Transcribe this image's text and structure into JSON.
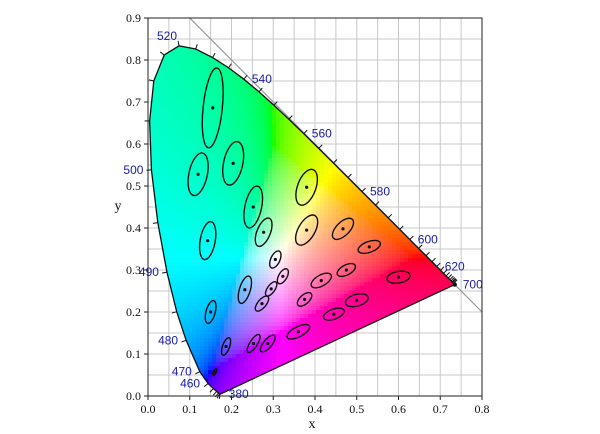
{
  "chart_data": {
    "type": "scatter",
    "title": "",
    "xlabel": "x",
    "ylabel": "y",
    "xlim": [
      0,
      0.8
    ],
    "ylim": [
      0,
      0.9
    ],
    "grid": true,
    "x_ticks": [
      "0.0",
      "0.1",
      "0.2",
      "0.3",
      "0.4",
      "0.5",
      "0.6",
      "0.7",
      "0.8"
    ],
    "y_ticks": [
      "0.0",
      "0.1",
      "0.2",
      "0.3",
      "0.4",
      "0.5",
      "0.6",
      "0.7",
      "0.8",
      "0.9"
    ],
    "spectral_locus": [
      [
        0.1741,
        0.005
      ],
      [
        0.1738,
        0.0049
      ],
      [
        0.1736,
        0.0049
      ],
      [
        0.1733,
        0.0048
      ],
      [
        0.1726,
        0.0048
      ],
      [
        0.1714,
        0.0051
      ],
      [
        0.1689,
        0.0069
      ],
      [
        0.1644,
        0.0109
      ],
      [
        0.1566,
        0.0177
      ],
      [
        0.144,
        0.0297
      ],
      [
        0.1241,
        0.0578
      ],
      [
        0.0913,
        0.1327
      ],
      [
        0.0687,
        0.2007
      ],
      [
        0.0454,
        0.295
      ],
      [
        0.0235,
        0.4127
      ],
      [
        0.0082,
        0.5384
      ],
      [
        0.0039,
        0.6548
      ],
      [
        0.0139,
        0.7502
      ],
      [
        0.0389,
        0.812
      ],
      [
        0.0743,
        0.8338
      ],
      [
        0.1142,
        0.8262
      ],
      [
        0.1547,
        0.8059
      ],
      [
        0.1929,
        0.7816
      ],
      [
        0.2296,
        0.7543
      ],
      [
        0.2658,
        0.7243
      ],
      [
        0.3016,
        0.6923
      ],
      [
        0.3373,
        0.6589
      ],
      [
        0.3731,
        0.6245
      ],
      [
        0.4087,
        0.5896
      ],
      [
        0.4441,
        0.5547
      ],
      [
        0.4788,
        0.5202
      ],
      [
        0.5125,
        0.4866
      ],
      [
        0.5448,
        0.4544
      ],
      [
        0.5752,
        0.4242
      ],
      [
        0.6029,
        0.3965
      ],
      [
        0.627,
        0.3725
      ],
      [
        0.6482,
        0.3514
      ],
      [
        0.6658,
        0.334
      ],
      [
        0.6801,
        0.3197
      ],
      [
        0.6915,
        0.3083
      ],
      [
        0.7006,
        0.2993
      ],
      [
        0.7079,
        0.292
      ],
      [
        0.714,
        0.2859
      ],
      [
        0.719,
        0.2809
      ],
      [
        0.723,
        0.277
      ],
      [
        0.726,
        0.274
      ],
      [
        0.7283,
        0.2717
      ],
      [
        0.73,
        0.27
      ],
      [
        0.732,
        0.268
      ],
      [
        0.7347,
        0.2653
      ]
    ],
    "wavelength_labels": [
      {
        "text": "380",
        "x": 0.1741,
        "y": 0.005,
        "pos": "right"
      },
      {
        "text": "460",
        "x": 0.144,
        "y": 0.0297,
        "pos": "left"
      },
      {
        "text": "470",
        "x": 0.1241,
        "y": 0.0578,
        "pos": "left"
      },
      {
        "text": "480",
        "x": 0.0913,
        "y": 0.1327,
        "pos": "left"
      },
      {
        "text": "490",
        "x": 0.0454,
        "y": 0.295,
        "pos": "left"
      },
      {
        "text": "500",
        "x": 0.0082,
        "y": 0.5384,
        "pos": "left"
      },
      {
        "text": "520",
        "x": 0.0743,
        "y": 0.8338,
        "pos": "top"
      },
      {
        "text": "540",
        "x": 0.2296,
        "y": 0.7543,
        "pos": "right"
      },
      {
        "text": "560",
        "x": 0.3731,
        "y": 0.6245,
        "pos": "right"
      },
      {
        "text": "580",
        "x": 0.5125,
        "y": 0.4866,
        "pos": "right"
      },
      {
        "text": "600",
        "x": 0.627,
        "y": 0.3725,
        "pos": "right"
      },
      {
        "text": "620",
        "x": 0.6915,
        "y": 0.3083,
        "pos": "right"
      },
      {
        "text": "700",
        "x": 0.7347,
        "y": 0.2653,
        "pos": "right"
      }
    ],
    "ellipses": [
      {
        "x": 0.16,
        "y": 0.057,
        "a": 0.0085,
        "b": 0.0035,
        "angle": 62
      },
      {
        "x": 0.187,
        "y": 0.118,
        "a": 0.022,
        "b": 0.0085,
        "angle": 70
      },
      {
        "x": 0.253,
        "y": 0.125,
        "a": 0.025,
        "b": 0.009,
        "angle": 57
      },
      {
        "x": 0.15,
        "y": 0.2,
        "a": 0.028,
        "b": 0.011,
        "angle": 75
      },
      {
        "x": 0.287,
        "y": 0.125,
        "a": 0.025,
        "b": 0.01,
        "angle": 50
      },
      {
        "x": 0.36,
        "y": 0.153,
        "a": 0.03,
        "b": 0.012,
        "angle": 27
      },
      {
        "x": 0.445,
        "y": 0.195,
        "a": 0.026,
        "b": 0.012,
        "angle": 20
      },
      {
        "x": 0.5,
        "y": 0.228,
        "a": 0.028,
        "b": 0.014,
        "angle": 15
      },
      {
        "x": 0.6,
        "y": 0.283,
        "a": 0.028,
        "b": 0.014,
        "angle": 10
      },
      {
        "x": 0.232,
        "y": 0.253,
        "a": 0.034,
        "b": 0.013,
        "angle": 73
      },
      {
        "x": 0.273,
        "y": 0.22,
        "a": 0.022,
        "b": 0.01,
        "angle": 50
      },
      {
        "x": 0.295,
        "y": 0.255,
        "a": 0.02,
        "b": 0.009,
        "angle": 55
      },
      {
        "x": 0.323,
        "y": 0.285,
        "a": 0.02,
        "b": 0.01,
        "angle": 60
      },
      {
        "x": 0.375,
        "y": 0.23,
        "a": 0.021,
        "b": 0.011,
        "angle": 42
      },
      {
        "x": 0.415,
        "y": 0.275,
        "a": 0.027,
        "b": 0.013,
        "angle": 30
      },
      {
        "x": 0.475,
        "y": 0.3,
        "a": 0.024,
        "b": 0.012,
        "angle": 28
      },
      {
        "x": 0.53,
        "y": 0.355,
        "a": 0.028,
        "b": 0.013,
        "angle": 20
      },
      {
        "x": 0.305,
        "y": 0.325,
        "a": 0.022,
        "b": 0.011,
        "angle": 65
      },
      {
        "x": 0.143,
        "y": 0.37,
        "a": 0.046,
        "b": 0.018,
        "angle": 80
      },
      {
        "x": 0.277,
        "y": 0.39,
        "a": 0.036,
        "b": 0.016,
        "angle": 68
      },
      {
        "x": 0.38,
        "y": 0.395,
        "a": 0.04,
        "b": 0.02,
        "angle": 60
      },
      {
        "x": 0.467,
        "y": 0.398,
        "a": 0.032,
        "b": 0.016,
        "angle": 45
      },
      {
        "x": 0.252,
        "y": 0.45,
        "a": 0.051,
        "b": 0.02,
        "angle": 78
      },
      {
        "x": 0.38,
        "y": 0.497,
        "a": 0.045,
        "b": 0.022,
        "angle": 70
      },
      {
        "x": 0.12,
        "y": 0.528,
        "a": 0.052,
        "b": 0.022,
        "angle": 78
      },
      {
        "x": 0.204,
        "y": 0.554,
        "a": 0.053,
        "b": 0.023,
        "angle": 78
      },
      {
        "x": 0.155,
        "y": 0.686,
        "a": 0.096,
        "b": 0.023,
        "angle": 84
      }
    ],
    "white_point": [
      0.7347,
      0.2653
    ],
    "diagonal": [
      [
        0.0,
        1.0
      ],
      [
        0.8,
        0.2
      ]
    ]
  }
}
